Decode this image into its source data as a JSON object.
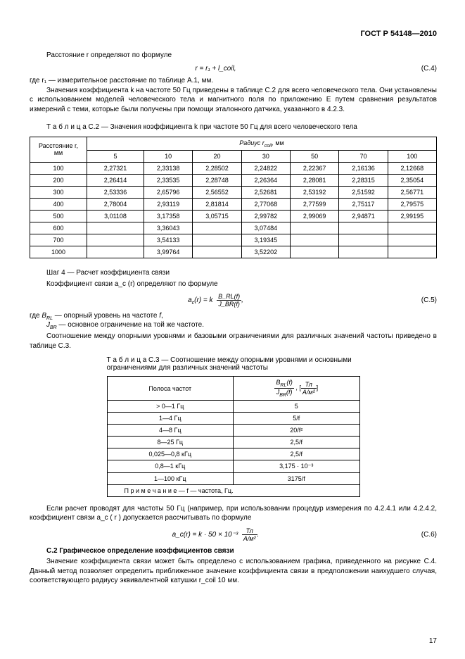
{
  "header": "ГОСТ Р 54148—2010",
  "t1": "Расстояние r определяют по формуле",
  "eq_c4": "r = r₁ + l_coil,",
  "eq_c4_n": "(С.4)",
  "t2a": "где r₁ — измерительное расстояние по таблице А.1, мм.",
  "t2b": "Значения коэффициента k на частоте 50 Гц приведены в таблице С.2 для всего человеческого тела. Они установлены с использованием моделей человеческого тела и магнитного поля по приложению Е путем сравнения результатов измерений с теми, которые были получены при помощи эталонного датчика, указанного в 4.2.3.",
  "tbl1_caption": "Т а б л и ц а   С.2 — Значения коэффициента k при частоте 50 Гц для всего человеческого тела",
  "tbl1": {
    "row_label": "Расстояние r, мм",
    "group_label": "Радиус r_coil, мм",
    "cols": [
      "5",
      "10",
      "20",
      "30",
      "50",
      "70",
      "100"
    ],
    "rows": [
      {
        "r": "100",
        "v": [
          "2,27321",
          "2,33138",
          "2,28502",
          "2,24822",
          "2,22367",
          "2,16136",
          "2,12668"
        ]
      },
      {
        "r": "200",
        "v": [
          "2,26414",
          "2,33535",
          "2,28748",
          "2,26364",
          "2,28081",
          "2,28315",
          "2,35054"
        ]
      },
      {
        "r": "300",
        "v": [
          "2,53336",
          "2,65796",
          "2,56552",
          "2,52681",
          "2,53192",
          "2,51592",
          "2,56771"
        ]
      },
      {
        "r": "400",
        "v": [
          "2,78004",
          "2,93119",
          "2,81814",
          "2,77068",
          "2,77599",
          "2,75117",
          "2,79575"
        ]
      },
      {
        "r": "500",
        "v": [
          "3,01108",
          "3,17358",
          "3,05715",
          "2,99782",
          "2,99069",
          "2,94871",
          "2,99195"
        ]
      },
      {
        "r": "600",
        "v": [
          "",
          "3,36043",
          "",
          "3,07484",
          "",
          "",
          ""
        ]
      },
      {
        "r": "700",
        "v": [
          "",
          "3,54133",
          "",
          "3,19345",
          "",
          "",
          ""
        ]
      },
      {
        "r": "1000",
        "v": [
          "",
          "3,99764",
          "",
          "3,52202",
          "",
          "",
          ""
        ]
      }
    ]
  },
  "step4": "Шаг 4 — Расчет коэффициента связи",
  "step4b": "Коэффициент связи a_c (r) определяют по формуле",
  "eq_c5_k": "a_c(r) = k",
  "eq_c5_num": "B_RL(f)",
  "eq_c5_den": "J_BR(f)",
  "eq_c5_n": "(С.5)",
  "t3a": "где B_RL — опорный уровень на частоте f,",
  "t3b": "J_BR — основное ограничение на той же частоте.",
  "t3c": "Соотношение между опорными уровнями и базовыми ограничениями для различных значений частоты приведено в таблице С.3.",
  "tbl2_caption": "Т а б л и ц а   С.3 — Соотношение между опорными уровнями и основными ограничениями для различных значений частоты",
  "tbl2": {
    "col1": "Полоса частот",
    "col2_num": "B_RL(f)",
    "col2_den": "J_BR(f)",
    "col2_unit_num": "Тл",
    "col2_unit_den": "А/м²",
    "rows": [
      [
        "> 0—1 Гц",
        "5"
      ],
      [
        "1—4 Гц",
        "5/f"
      ],
      [
        "4—8 Гц",
        "20/f²"
      ],
      [
        "8—25 Гц",
        "2,5/f"
      ],
      [
        "0,025—0,8 кГц",
        "2,5/f"
      ],
      [
        "0,8—1 кГц",
        "3,175 · 10⁻³"
      ],
      [
        "1—100 кГц",
        "3175/f"
      ]
    ],
    "note": "П р и м е ч а н и е — f — частота, Гц."
  },
  "t4": "Если расчет проводят для частоты 50 Гц (например, при использовании процедур измерения по 4.2.4.1 или 4.2.4.2, коэффициент связи a_c ( r ) допускается рассчитывать по формуле",
  "eq_c6_lhs": "a_c(r) = k · 50 × 10⁻³",
  "eq_c6_num": "Тл",
  "eq_c6_den": "А/м²",
  "eq_c6_n": "(С.6)",
  "sec_c2": "С.2  Графическое определение коэффициентов связи",
  "t5": "Значение коэффициента связи может быть определено с использованием графика, приведенного на рисунке С.4. Данный метод позволяет определить приближенное значение коэффициента связи в предположении наихудшего случая, соответствующего радиусу эквивалентной катушки r_coil 10 мм.",
  "page_num": "17"
}
